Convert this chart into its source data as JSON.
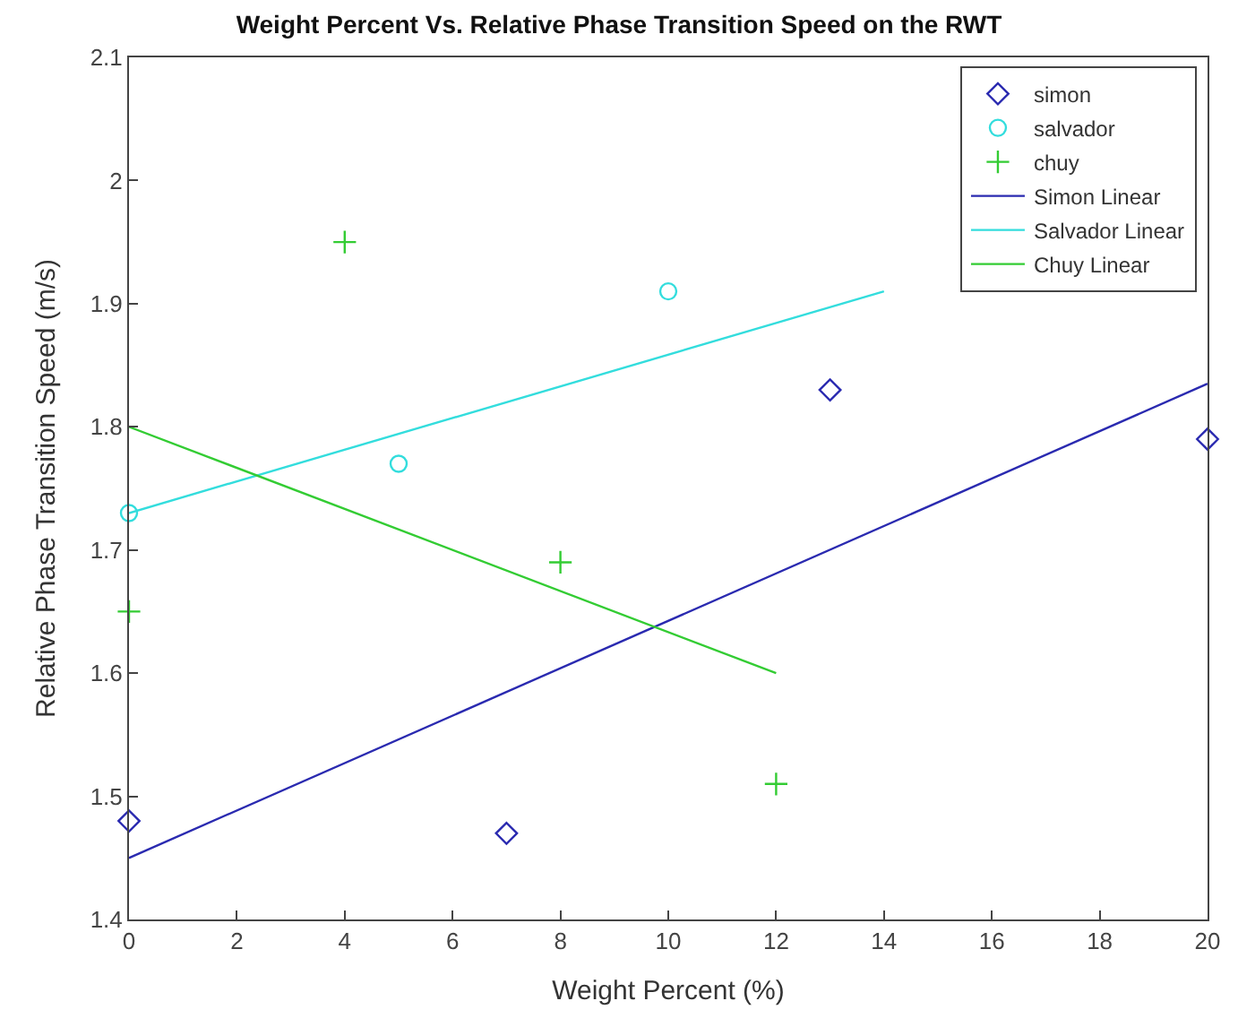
{
  "chart_data": {
    "type": "scatter",
    "title": "Weight Percent Vs. Relative Phase Transition Speed on the RWT",
    "xlabel": "Weight Percent (%)",
    "ylabel": "Relative Phase Transition Speed (m/s)",
    "xlim": [
      0,
      20
    ],
    "xticks": [
      0,
      2,
      4,
      6,
      8,
      10,
      12,
      14,
      16,
      18,
      20
    ],
    "ylim": [
      1.4,
      2.1
    ],
    "yticks": [
      1.4,
      1.5,
      1.6,
      1.7,
      1.8,
      1.9,
      2,
      2.1
    ],
    "legend": "top right",
    "series": [
      {
        "name": "simon",
        "marker": "diamond",
        "color": "#2a2ab0",
        "x": [
          0,
          7,
          13,
          20
        ],
        "values": [
          1.48,
          1.47,
          1.83,
          1.79
        ]
      },
      {
        "name": "salvador",
        "marker": "circle",
        "color": "#33dddd",
        "x": [
          0,
          5,
          10
        ],
        "values": [
          1.73,
          1.77,
          1.91
        ]
      },
      {
        "name": "chuy",
        "marker": "cross",
        "color": "#33cc33",
        "x": [
          0,
          4,
          8,
          12
        ],
        "values": [
          1.65,
          1.95,
          1.69,
          1.51
        ]
      },
      {
        "name": "Simon Linear",
        "type": "line",
        "color": "#2a2ab0",
        "x": [
          0,
          20
        ],
        "values": [
          1.45,
          1.835
        ]
      },
      {
        "name": "Salvador Linear",
        "type": "line",
        "color": "#33dddd",
        "x": [
          0,
          14
        ],
        "values": [
          1.73,
          1.91
        ]
      },
      {
        "name": "Chuy Linear",
        "type": "line",
        "color": "#33cc33",
        "x": [
          0,
          12
        ],
        "values": [
          1.8,
          1.6
        ]
      }
    ]
  }
}
